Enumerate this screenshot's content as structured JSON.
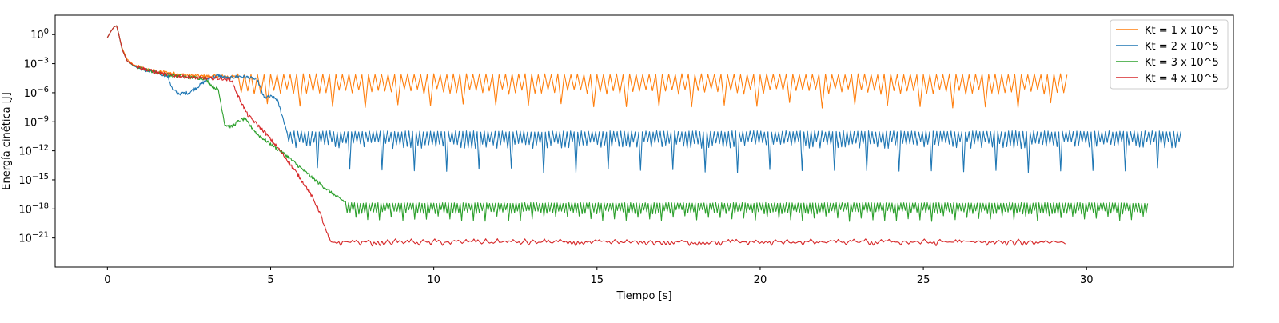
{
  "chart_data": {
    "type": "line",
    "title": "",
    "xlabel": "Tiempo [s]",
    "ylabel": "Energía cinética [J]",
    "xlim": [
      -1.6,
      34.5
    ],
    "xticks": [
      0,
      5,
      10,
      15,
      20,
      25,
      30
    ],
    "xtick_labels": [
      "0",
      "5",
      "10",
      "15",
      "20",
      "25",
      "30"
    ],
    "ylim": [
      1e-24,
      100.0
    ],
    "yscale": "log",
    "ytick_exponents": [
      0,
      -3,
      -6,
      -9,
      -12,
      -15,
      -18,
      -21
    ],
    "ytick_labels": [
      "10^0",
      "10^-3",
      "10^-6",
      "10^-9",
      "10^-12",
      "10^-15",
      "10^-18",
      "10^-21"
    ],
    "grid": false,
    "legend_position": "top-right",
    "series": [
      {
        "name": "Kt = 1 x 10^5",
        "color": "#ff7f0e",
        "t_end": 29.4,
        "transient": [
          [
            0,
            0.5
          ],
          [
            0.1,
            2.0
          ],
          [
            0.2,
            6.0
          ],
          [
            0.28,
            8.0
          ],
          [
            0.35,
            1.0
          ],
          [
            0.45,
            0.04
          ],
          [
            0.6,
            0.003
          ],
          [
            0.8,
            0.0008
          ],
          [
            1.0,
            0.0004
          ],
          [
            1.3,
            0.0002
          ],
          [
            1.6,
            0.00015
          ],
          [
            2.0,
            0.0001
          ],
          [
            2.5,
            6e-05
          ],
          [
            3.0,
            5e-05
          ],
          [
            3.5,
            5e-05
          ],
          [
            4.0,
            4e-05
          ]
        ],
        "osc": {
          "start": 4.0,
          "peak": 8e-05,
          "trough": 1e-06,
          "deep": 5e-08,
          "period": 0.2,
          "deep_every": 5,
          "noise": 0.4
        }
      },
      {
        "name": "Kt = 2 x 10^5",
        "color": "#1f77b4",
        "t_end": 32.9,
        "transient": [
          [
            0,
            0.5
          ],
          [
            0.1,
            2.0
          ],
          [
            0.2,
            6.0
          ],
          [
            0.28,
            8.0
          ],
          [
            0.35,
            1.0
          ],
          [
            0.45,
            0.03
          ],
          [
            0.6,
            0.002
          ],
          [
            0.8,
            0.0006
          ],
          [
            1.0,
            0.0003
          ],
          [
            1.3,
            0.00015
          ],
          [
            1.6,
            0.0001
          ],
          [
            1.85,
            5e-05
          ],
          [
            2.0,
            2e-06
          ],
          [
            2.2,
            8e-07
          ],
          [
            2.5,
            1e-06
          ],
          [
            2.8,
            5e-06
          ],
          [
            3.1,
            3e-05
          ],
          [
            3.4,
            6e-05
          ],
          [
            3.7,
            3e-05
          ],
          [
            4.0,
            5e-05
          ],
          [
            4.3,
            4e-05
          ],
          [
            4.6,
            2e-05
          ],
          [
            4.8,
            3e-07
          ],
          [
            5.0,
            4e-07
          ],
          [
            5.2,
            2e-07
          ],
          [
            5.35,
            5e-09
          ],
          [
            5.5,
            1e-10
          ]
        ],
        "osc": {
          "start": 5.5,
          "peak": 1e-10,
          "trough": 3e-12,
          "deep": 1e-14,
          "period": 0.11,
          "deep_every": 9,
          "noise": 0.5
        }
      },
      {
        "name": "Kt = 3 x 10^5",
        "color": "#2ca02c",
        "t_end": 31.9,
        "transient": [
          [
            0,
            0.5
          ],
          [
            0.1,
            2.0
          ],
          [
            0.2,
            6.0
          ],
          [
            0.28,
            8.0
          ],
          [
            0.35,
            1.0
          ],
          [
            0.45,
            0.03
          ],
          [
            0.6,
            0.002
          ],
          [
            0.8,
            0.0006
          ],
          [
            1.0,
            0.0004
          ],
          [
            1.3,
            0.0002
          ],
          [
            1.6,
            0.0001
          ],
          [
            2.0,
            6e-05
          ],
          [
            2.5,
            4e-05
          ],
          [
            3.0,
            3e-05
          ],
          [
            3.2,
            5e-06
          ],
          [
            3.4,
            2e-06
          ],
          [
            3.6,
            5e-10
          ],
          [
            3.8,
            3e-10
          ],
          [
            4.0,
            1e-09
          ],
          [
            4.2,
            2e-09
          ],
          [
            4.6,
            5e-11
          ],
          [
            5.0,
            5e-12
          ],
          [
            5.5,
            3e-13
          ],
          [
            6.0,
            1e-14
          ],
          [
            6.5,
            4e-16
          ],
          [
            7.0,
            2e-17
          ],
          [
            7.3,
            5e-18
          ]
        ],
        "osc": {
          "start": 7.3,
          "peak": 4e-18,
          "trough": 4e-19,
          "deep": 1e-19,
          "period": 0.09,
          "deep_every": 4,
          "noise": 0.3
        }
      },
      {
        "name": "Kt = 4 x 10^5",
        "color": "#d62728",
        "t_end": 29.4,
        "transient": [
          [
            0,
            0.5
          ],
          [
            0.1,
            2.0
          ],
          [
            0.2,
            6.0
          ],
          [
            0.28,
            8.0
          ],
          [
            0.35,
            1.0
          ],
          [
            0.45,
            0.03
          ],
          [
            0.6,
            0.002
          ],
          [
            0.8,
            0.0007
          ],
          [
            1.0,
            0.0004
          ],
          [
            1.3,
            0.0002
          ],
          [
            1.6,
            0.0001
          ],
          [
            2.0,
            6e-05
          ],
          [
            2.5,
            4e-05
          ],
          [
            3.0,
            3e-05
          ],
          [
            3.5,
            3e-05
          ],
          [
            3.8,
            2e-05
          ],
          [
            4.0,
            5e-07
          ],
          [
            4.3,
            5e-09
          ],
          [
            4.8,
            1e-10
          ],
          [
            5.3,
            1e-12
          ],
          [
            5.8,
            5e-15
          ],
          [
            6.2,
            5e-17
          ],
          [
            6.5,
            5e-19
          ],
          [
            6.7,
            5e-21
          ],
          [
            6.85,
            3e-22
          ]
        ],
        "osc": {
          "start": 6.85,
          "peak": 4e-22,
          "trough": 2.5e-22,
          "deep": 1.8e-22,
          "period": 0.12,
          "deep_every": 0,
          "noise": 0.5
        }
      }
    ]
  }
}
